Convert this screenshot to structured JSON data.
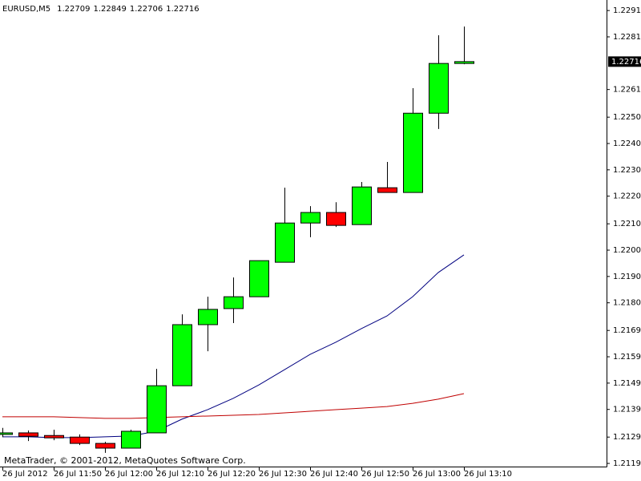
{
  "chart_data": {
    "type": "candlestick",
    "symbol": "EURUSD,M5",
    "watermark": "MetaTrader, © 2001-2012, MetaQuotes Software Corp.",
    "categories": [
      "26 Jul 2012",
      null,
      "26 Jul 11:50",
      null,
      "26 Jul 12:00",
      null,
      "26 Jul 12:10",
      null,
      "26 Jul 12:20",
      null,
      "26 Jul 12:30",
      null,
      "26 Jul 12:40",
      null,
      "26 Jul 12:50",
      null,
      "26 Jul 13:00",
      null,
      "26 Jul 13:10"
    ],
    "open": [
      1.213,
      1.21306,
      1.21296,
      1.2129,
      1.21266,
      1.21248,
      1.21306,
      1.21485,
      1.21717,
      1.21778,
      1.21823,
      1.21954,
      1.22103,
      1.22143,
      1.22097,
      1.22237,
      1.22219,
      1.2252,
      1.22709
    ],
    "high": [
      1.21325,
      1.21315,
      1.21318,
      1.213,
      1.21272,
      1.21318,
      1.21549,
      1.21756,
      1.21823,
      1.21896,
      1.2196,
      1.22237,
      1.22167,
      1.22182,
      1.22259,
      1.22335,
      1.22615,
      1.22816,
      1.22849
    ],
    "low": [
      1.2129,
      1.21275,
      1.21278,
      1.2126,
      1.2123,
      1.21248,
      1.21306,
      1.21485,
      1.21616,
      1.21723,
      1.21823,
      1.21954,
      1.22049,
      1.22088,
      1.22097,
      1.22219,
      1.22219,
      1.2246,
      1.22706
    ],
    "close": [
      1.21306,
      1.21293,
      1.21287,
      1.21266,
      1.21248,
      1.21312,
      1.21485,
      1.21717,
      1.21775,
      1.21823,
      1.2196,
      1.22103,
      1.22143,
      1.22094,
      1.2224,
      1.22219,
      1.2252,
      1.22709,
      1.22716
    ],
    "up_color": "#00ff00",
    "down_color": "#ff0000",
    "moving_averages": [
      {
        "color": "#000080",
        "values": [
          1.21291,
          1.21291,
          1.21288,
          1.21288,
          1.21291,
          1.21294,
          1.21312,
          1.21358,
          1.21394,
          1.21437,
          1.21488,
          1.21546,
          1.21604,
          1.2165,
          1.21702,
          1.2175,
          1.21823,
          1.21915,
          1.21982
        ]
      },
      {
        "color": "#c00000",
        "values": [
          1.21367,
          1.21367,
          1.21367,
          1.21364,
          1.21361,
          1.21361,
          1.21364,
          1.21367,
          1.2137,
          1.21373,
          1.21376,
          1.21382,
          1.21388,
          1.21394,
          1.214,
          1.21406,
          1.21418,
          1.21434,
          1.21455
        ]
      }
    ],
    "ylim": [
      1.21178,
      1.2295
    ],
    "yticks": [
      {
        "value": 1.2291,
        "label": "1.22910"
      },
      {
        "value": 1.2281,
        "label": "1.22810"
      },
      {
        "value": 1.2261,
        "label": "1.22610"
      },
      1.22505,
      1.22405,
      1.22305,
      1.22205,
      {
        "value": 1.221,
        "label": "1.22100"
      },
      {
        "value": 1.22,
        "label": "1.22000"
      },
      {
        "value": 1.219,
        "label": "1.21900"
      },
      {
        "value": 1.218,
        "label": "1.21800"
      },
      1.21695,
      1.21595,
      1.21495,
      1.21395,
      {
        "value": 1.2129,
        "label": "1.21290"
      },
      {
        "value": 1.2119,
        "label": "1.21190"
      }
    ]
  }
}
